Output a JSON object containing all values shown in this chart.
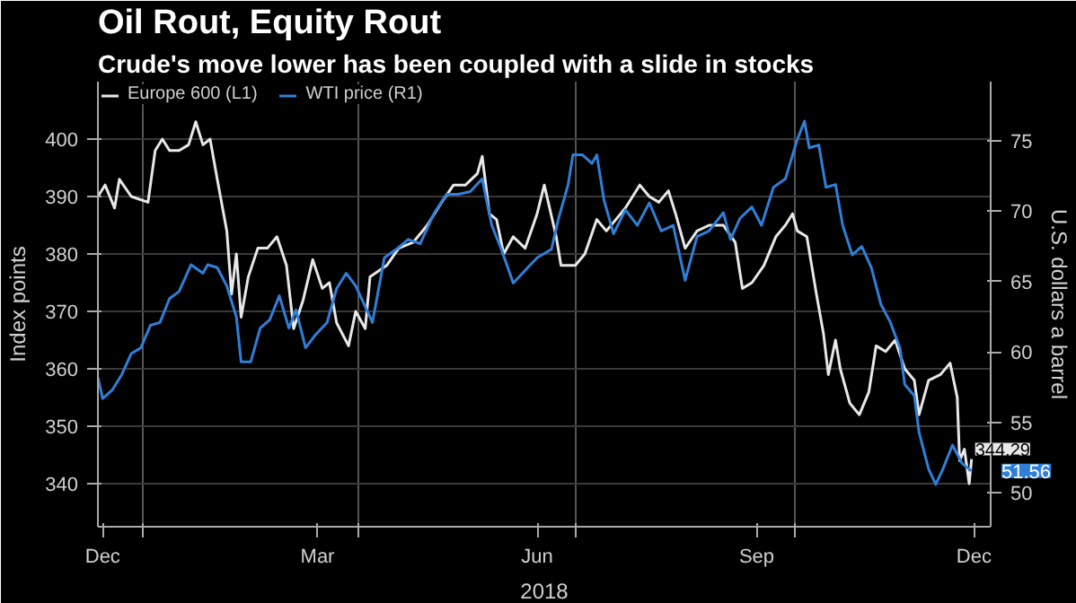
{
  "chart_data": {
    "type": "line",
    "title": "Oil Rout, Equity Rout",
    "subtitle": "Crude's move lower has been coupled with a slide in stocks",
    "xlabel": "2018",
    "ylabel": "Index points",
    "y2label": "U.S. dollars a barrel",
    "xlim": [
      "2017-12-13",
      "2018-12-22"
    ],
    "xticks": [
      {
        "value": "2017-12-15",
        "label": "Dec"
      },
      {
        "value": "2018-01-01",
        "label": null
      },
      {
        "value": "2018-03-15",
        "label": "Mar"
      },
      {
        "value": "2018-04-01",
        "label": null
      },
      {
        "value": "2018-06-15",
        "label": "Jun"
      },
      {
        "value": "2018-07-01",
        "label": null
      },
      {
        "value": "2018-09-15",
        "label": "Sep"
      },
      {
        "value": "2018-10-01",
        "label": null
      },
      {
        "value": "2018-12-15",
        "label": "Dec"
      }
    ],
    "ylim": [
      332.5,
      410
    ],
    "yticks": [
      340,
      350,
      360,
      370,
      380,
      390,
      400
    ],
    "y2lim": [
      47.6,
      79.2
    ],
    "y2ticks": [
      50,
      55,
      60,
      65,
      70,
      75
    ],
    "grid": true,
    "legend": "top left",
    "line_style": "solid",
    "series": [
      {
        "name": "Europe 600 (L1)",
        "color": "#e8e8e8",
        "x": [
          "2017-12-13",
          "2017-12-16",
          "2017-12-20",
          "2017-12-22",
          "2017-12-27",
          "2018-01-03",
          "2018-01-06",
          "2018-01-09",
          "2018-01-12",
          "2018-01-16",
          "2018-01-20",
          "2018-01-23",
          "2018-01-26",
          "2018-01-29",
          "2018-02-01",
          "2018-02-05",
          "2018-02-07",
          "2018-02-09",
          "2018-02-11",
          "2018-02-14",
          "2018-02-18",
          "2018-02-22",
          "2018-02-26",
          "2018-03-02",
          "2018-03-05",
          "2018-03-09",
          "2018-03-13",
          "2018-03-17",
          "2018-03-20",
          "2018-03-23",
          "2018-03-28",
          "2018-03-31",
          "2018-04-04",
          "2018-04-06",
          "2018-04-13",
          "2018-04-18",
          "2018-04-24",
          "2018-04-30",
          "2018-05-06",
          "2018-05-11",
          "2018-05-16",
          "2018-05-21",
          "2018-05-23",
          "2018-05-26",
          "2018-05-29",
          "2018-06-01",
          "2018-06-05",
          "2018-06-10",
          "2018-06-15",
          "2018-06-18",
          "2018-06-23",
          "2018-06-25",
          "2018-06-28",
          "2018-07-01",
          "2018-07-05",
          "2018-07-10",
          "2018-07-14",
          "2018-07-18",
          "2018-07-22",
          "2018-07-28",
          "2018-08-01",
          "2018-08-05",
          "2018-08-09",
          "2018-08-12",
          "2018-08-16",
          "2018-08-21",
          "2018-08-26",
          "2018-09-01",
          "2018-09-06",
          "2018-09-09",
          "2018-09-13",
          "2018-09-18",
          "2018-09-23",
          "2018-09-27",
          "2018-09-30",
          "2018-10-02",
          "2018-10-06",
          "2018-10-10",
          "2018-10-13",
          "2018-10-15",
          "2018-10-18",
          "2018-10-20",
          "2018-10-24",
          "2018-10-28",
          "2018-11-01",
          "2018-11-04",
          "2018-11-08",
          "2018-11-12",
          "2018-11-16",
          "2018-11-20",
          "2018-11-22",
          "2018-11-26",
          "2018-12-01",
          "2018-12-05",
          "2018-12-08",
          "2018-12-09",
          "2018-12-11",
          "2018-12-13",
          "2018-12-14"
        ],
        "values": [
          390,
          392,
          388,
          393,
          390,
          389,
          398,
          400,
          398,
          398,
          399,
          403,
          399,
          400,
          393,
          384,
          373,
          380,
          369,
          376,
          381,
          381,
          383,
          378,
          367,
          372,
          379,
          374,
          375,
          368,
          364,
          370,
          367,
          376,
          378,
          381,
          382,
          385,
          389,
          392,
          392,
          394,
          397,
          387,
          386,
          380,
          383,
          381,
          387,
          392,
          383,
          378,
          378,
          378,
          380,
          386,
          384,
          386,
          388,
          392,
          390,
          389,
          391,
          387,
          381,
          384,
          385,
          385,
          382,
          374,
          375,
          378,
          383,
          385,
          387,
          384,
          383,
          373,
          366,
          359,
          365,
          360,
          354,
          352,
          356,
          364,
          363,
          365,
          360,
          358,
          352,
          358,
          359,
          361,
          355,
          344,
          346,
          340,
          344.29
        ],
        "value_labels": [
          null,
          null,
          null,
          null,
          null,
          null,
          null,
          null,
          null,
          null,
          null,
          null,
          null,
          null,
          null,
          null,
          null,
          null,
          null,
          null,
          null,
          null,
          null,
          null,
          null,
          null,
          null,
          null,
          null,
          null,
          null,
          null,
          null,
          null,
          null,
          null,
          null,
          null,
          null,
          null,
          null,
          null,
          null,
          null,
          null,
          null,
          null,
          null,
          null,
          null,
          null,
          null,
          null,
          null,
          null,
          null,
          null,
          null,
          null,
          null,
          null,
          null,
          null,
          null,
          null,
          null,
          null,
          null,
          null,
          null,
          null,
          null,
          null,
          null,
          null,
          null,
          null,
          null,
          null,
          null,
          null,
          null,
          null,
          null,
          null,
          null,
          null,
          null,
          null,
          null,
          null,
          null,
          null,
          null,
          null,
          null,
          null,
          null,
          "344.29"
        ]
      },
      {
        "name": "WTI price (R1)",
        "color": "#2f7fd8",
        "axis": "y2",
        "x": [
          "2017-12-13",
          "2017-12-15",
          "2017-12-19",
          "2017-12-23",
          "2017-12-27",
          "2017-12-31",
          "2018-01-04",
          "2018-01-08",
          "2018-01-12",
          "2018-01-16",
          "2018-01-21",
          "2018-01-26",
          "2018-01-28",
          "2018-02-01",
          "2018-02-05",
          "2018-02-09",
          "2018-02-11",
          "2018-02-15",
          "2018-02-19",
          "2018-02-23",
          "2018-02-27",
          "2018-03-03",
          "2018-03-06",
          "2018-03-10",
          "2018-03-14",
          "2018-03-19",
          "2018-03-23",
          "2018-03-27",
          "2018-03-31",
          "2018-04-03",
          "2018-04-07",
          "2018-04-12",
          "2018-04-17",
          "2018-04-22",
          "2018-04-27",
          "2018-05-03",
          "2018-05-08",
          "2018-05-13",
          "2018-05-18",
          "2018-05-23",
          "2018-05-27",
          "2018-05-31",
          "2018-06-05",
          "2018-06-10",
          "2018-06-15",
          "2018-06-21",
          "2018-06-24",
          "2018-06-28",
          "2018-06-30",
          "2018-07-04",
          "2018-07-08",
          "2018-07-10",
          "2018-07-13",
          "2018-07-17",
          "2018-07-22",
          "2018-07-27",
          "2018-08-01",
          "2018-08-06",
          "2018-08-11",
          "2018-08-16",
          "2018-08-21",
          "2018-08-26",
          "2018-09-01",
          "2018-09-04",
          "2018-09-08",
          "2018-09-13",
          "2018-09-17",
          "2018-09-22",
          "2018-09-27",
          "2018-10-02",
          "2018-10-05",
          "2018-10-07",
          "2018-10-11",
          "2018-10-14",
          "2018-10-18",
          "2018-10-21",
          "2018-10-25",
          "2018-10-29",
          "2018-11-02",
          "2018-11-06",
          "2018-11-10",
          "2018-11-14",
          "2018-11-16",
          "2018-11-20",
          "2018-11-22",
          "2018-11-26",
          "2018-11-29",
          "2018-12-02",
          "2018-12-06",
          "2018-12-10",
          "2018-12-14"
        ],
        "values": [
          58.2,
          56.7,
          57.3,
          58.4,
          59.9,
          60.3,
          61.9,
          62.1,
          63.8,
          64.3,
          66.2,
          65.6,
          66.2,
          66.0,
          64.7,
          62.5,
          59.3,
          59.3,
          61.7,
          62.3,
          64.0,
          61.7,
          63.0,
          60.3,
          61.2,
          62.1,
          64.5,
          65.6,
          64.7,
          63.6,
          62.1,
          66.7,
          67.3,
          68.0,
          67.7,
          69.9,
          71.2,
          71.2,
          71.4,
          72.3,
          69.0,
          67.3,
          64.9,
          65.8,
          66.7,
          67.3,
          69.5,
          71.9,
          74.0,
          74.0,
          73.4,
          74.0,
          70.8,
          68.4,
          70.1,
          69.0,
          70.6,
          68.6,
          69.0,
          65.1,
          68.2,
          68.6,
          69.9,
          68.0,
          69.5,
          70.3,
          69.0,
          71.7,
          72.3,
          75.1,
          76.4,
          74.5,
          74.7,
          71.7,
          71.9,
          69.0,
          66.9,
          67.5,
          66.0,
          63.4,
          62.1,
          60.3,
          57.7,
          56.9,
          54.3,
          51.7,
          50.6,
          51.7,
          53.4,
          52.1,
          51.56
        ],
        "value_labels": [
          null,
          null,
          null,
          null,
          null,
          null,
          null,
          null,
          null,
          null,
          null,
          null,
          null,
          null,
          null,
          null,
          null,
          null,
          null,
          null,
          null,
          null,
          null,
          null,
          null,
          null,
          null,
          null,
          null,
          null,
          null,
          null,
          null,
          null,
          null,
          null,
          null,
          null,
          null,
          null,
          null,
          null,
          null,
          null,
          null,
          null,
          null,
          null,
          null,
          null,
          null,
          null,
          null,
          null,
          null,
          null,
          null,
          null,
          null,
          null,
          null,
          null,
          null,
          null,
          null,
          null,
          null,
          null,
          null,
          null,
          null,
          null,
          null,
          null,
          null,
          null,
          null,
          null,
          null,
          null,
          null,
          null,
          null,
          null,
          null,
          null,
          null,
          null,
          null,
          null,
          "51.56"
        ]
      }
    ]
  }
}
